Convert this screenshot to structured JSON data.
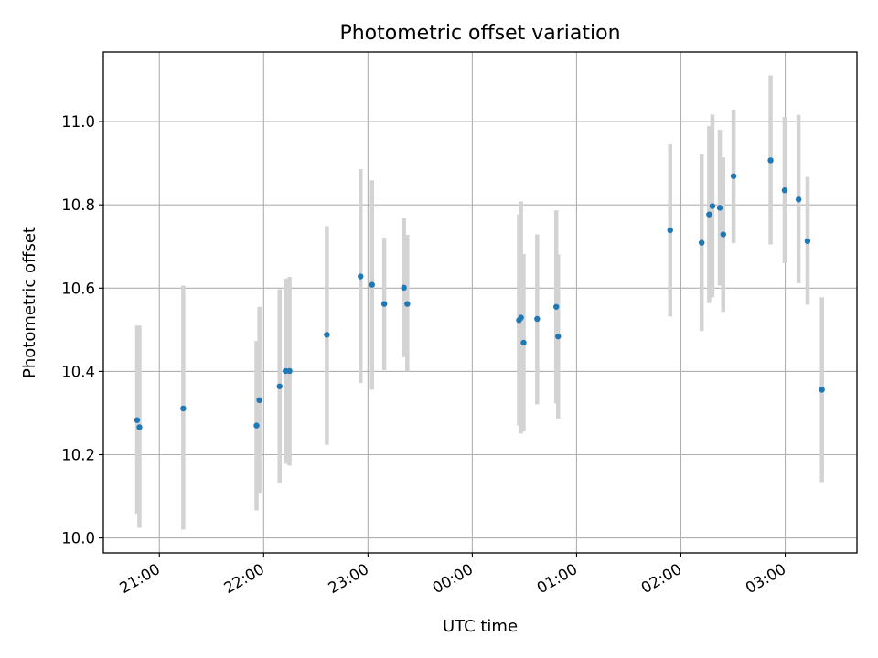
{
  "chart_data": {
    "type": "scatter",
    "title": "Photometric offset variation",
    "xlabel": "UTC time",
    "ylabel": "Photometric offset",
    "x_tick_values_hours": [
      21,
      22,
      23,
      24,
      25,
      26,
      27
    ],
    "x_tick_labels": [
      "21:00",
      "22:00",
      "23:00",
      "00:00",
      "01:00",
      "02:00",
      "03:00"
    ],
    "xlim_hours": [
      20.463,
      27.688
    ],
    "ylim": [
      9.964,
      11.167
    ],
    "y_ticks": [
      10.0,
      10.2,
      10.4,
      10.6,
      10.8,
      11.0
    ],
    "y_tick_labels": [
      "10.0",
      "10.2",
      "10.4",
      "10.6",
      "10.8",
      "11.0"
    ],
    "grid": true,
    "colors": {
      "point": "#1f77b4",
      "errorbar": "#d3d3d3",
      "grid": "#b0b0b0"
    },
    "points": [
      {
        "t": 20.787,
        "y": 10.283,
        "lo": 10.058,
        "hi": 10.51
      },
      {
        "t": 20.809,
        "y": 10.266,
        "lo": 10.024,
        "hi": 10.51
      },
      {
        "t": 21.229,
        "y": 10.311,
        "lo": 10.02,
        "hi": 10.606
      },
      {
        "t": 21.932,
        "y": 10.27,
        "lo": 10.066,
        "hi": 10.473
      },
      {
        "t": 21.959,
        "y": 10.331,
        "lo": 10.107,
        "hi": 10.555
      },
      {
        "t": 22.153,
        "y": 10.364,
        "lo": 10.131,
        "hi": 10.597
      },
      {
        "t": 22.21,
        "y": 10.401,
        "lo": 10.178,
        "hi": 10.623
      },
      {
        "t": 22.248,
        "y": 10.401,
        "lo": 10.174,
        "hi": 10.627
      },
      {
        "t": 22.606,
        "y": 10.488,
        "lo": 10.224,
        "hi": 10.749
      },
      {
        "t": 22.929,
        "y": 10.628,
        "lo": 10.372,
        "hi": 10.886
      },
      {
        "t": 23.039,
        "y": 10.608,
        "lo": 10.356,
        "hi": 10.859
      },
      {
        "t": 23.156,
        "y": 10.562,
        "lo": 10.403,
        "hi": 10.721
      },
      {
        "t": 23.345,
        "y": 10.601,
        "lo": 10.434,
        "hi": 10.768
      },
      {
        "t": 23.377,
        "y": 10.562,
        "lo": 10.4,
        "hi": 10.728
      },
      {
        "t": 24.448,
        "y": 10.523,
        "lo": 10.27,
        "hi": 10.777
      },
      {
        "t": 24.467,
        "y": 10.529,
        "lo": 10.251,
        "hi": 10.808
      },
      {
        "t": 24.492,
        "y": 10.469,
        "lo": 10.256,
        "hi": 10.682
      },
      {
        "t": 24.622,
        "y": 10.526,
        "lo": 10.321,
        "hi": 10.729
      },
      {
        "t": 24.805,
        "y": 10.555,
        "lo": 10.323,
        "hi": 10.787
      },
      {
        "t": 24.823,
        "y": 10.484,
        "lo": 10.287,
        "hi": 10.681
      },
      {
        "t": 25.897,
        "y": 10.739,
        "lo": 10.532,
        "hi": 10.945
      },
      {
        "t": 26.199,
        "y": 10.709,
        "lo": 10.497,
        "hi": 10.922
      },
      {
        "t": 26.271,
        "y": 10.777,
        "lo": 10.564,
        "hi": 10.989
      },
      {
        "t": 26.302,
        "y": 10.797,
        "lo": 10.578,
        "hi": 11.017
      },
      {
        "t": 26.373,
        "y": 10.793,
        "lo": 10.606,
        "hi": 10.98
      },
      {
        "t": 26.406,
        "y": 10.729,
        "lo": 10.543,
        "hi": 10.914
      },
      {
        "t": 26.505,
        "y": 10.869,
        "lo": 10.708,
        "hi": 11.029
      },
      {
        "t": 26.86,
        "y": 10.907,
        "lo": 10.705,
        "hi": 11.111
      },
      {
        "t": 26.995,
        "y": 10.835,
        "lo": 10.66,
        "hi": 11.011
      },
      {
        "t": 27.128,
        "y": 10.813,
        "lo": 10.612,
        "hi": 11.016
      },
      {
        "t": 27.214,
        "y": 10.713,
        "lo": 10.56,
        "hi": 10.867
      },
      {
        "t": 27.352,
        "y": 10.356,
        "lo": 10.134,
        "hi": 10.578
      }
    ]
  }
}
